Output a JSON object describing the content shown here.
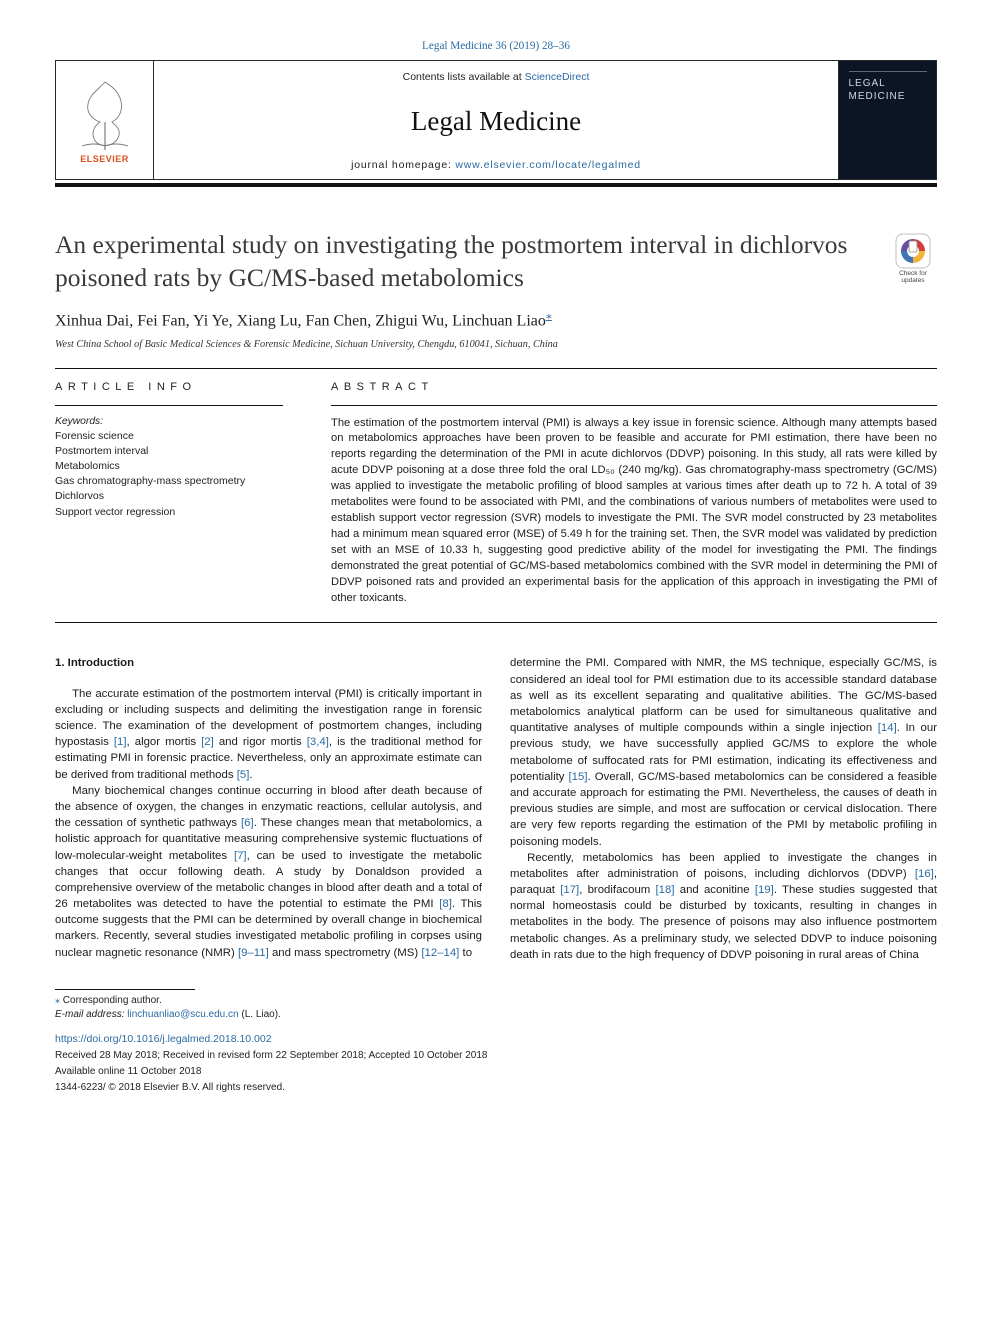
{
  "citation": {
    "text": "Legal Medicine 36 (2019) 28–36",
    "color": "#2b6ba3",
    "fontsize": 11.2
  },
  "header": {
    "contents_prefix": "Contents lists available at ",
    "contents_link_text": "ScienceDirect",
    "journal_name": "Legal Medicine",
    "journal_name_fontsize": 27,
    "homepage_prefix": "journal homepage: ",
    "homepage_link_text": "www.elsevier.com/locate/legalmed",
    "publisher_label": "ELSEVIER",
    "publisher_label_color": "#d94f1e",
    "cover_line1": "LEGAL",
    "cover_line2": "MEDICINE",
    "cover_bg": "#0b1524",
    "cover_text_color": "#cfd7e2",
    "border_color": "#2a2a2a"
  },
  "title": {
    "text": "An experimental study on investigating the postmortem interval in dichlorvos poisoned rats by GC/MS-based metabolomics",
    "fontsize": 25.5,
    "color": "#3a3a3a"
  },
  "check_updates_label": "Check for updates",
  "authors": {
    "names": "Xinhua Dai, Fei Fan, Yi Ye, Xiang Lu, Fan Chen, Zhigui Wu, Linchuan Liao",
    "corr_symbol": "⁎",
    "fontsize": 16
  },
  "affiliation": "West China School of Basic Medical Sciences & Forensic Medicine, Sichuan University, Chengdu, 610041, Sichuan, China",
  "article_info": {
    "label": "ARTICLE INFO",
    "keywords_label": "Keywords:",
    "keywords": [
      "Forensic science",
      "Postmortem interval",
      "Metabolomics",
      "Gas chromatography-mass spectrometry",
      "Dichlorvos",
      "Support vector regression"
    ]
  },
  "abstract": {
    "label": "ABSTRACT",
    "text": "The estimation of the postmortem interval (PMI) is always a key issue in forensic science. Although many attempts based on metabolomics approaches have been proven to be feasible and accurate for PMI estimation, there have been no reports regarding the determination of the PMI in acute dichlorvos (DDVP) poisoning. In this study, all rats were killed by acute DDVP poisoning at a dose three fold the oral LD₅₀ (240 mg/kg). Gas chromatography-mass spectrometry (GC/MS) was applied to investigate the metabolic profiling of blood samples at various times after death up to 72 h. A total of 39 metabolites were found to be associated with PMI, and the combinations of various numbers of metabolites were used to establish support vector regression (SVR) models to investigate the PMI. The SVR model constructed by 23 metabolites had a minimum mean squared error (MSE) of 5.49 h for the training set. Then, the SVR model was validated by prediction set with an MSE of 10.33 h, suggesting good predictive ability of the model for investigating the PMI. The findings demonstrated the great potential of GC/MS-based metabolomics combined with the SVR model in determining the PMI of DDVP poisoned rats and provided an experimental basis for the application of this approach in investigating the PMI of other toxicants.",
    "fontsize": 11.2
  },
  "body": {
    "section_heading": "1. Introduction",
    "left_paras": [
      "The accurate estimation of the postmortem interval (PMI) is critically important in excluding or including suspects and delimiting the investigation range in forensic science. The examination of the development of postmortem changes, including hypostasis [1], algor mortis [2] and rigor mortis [3,4], is the traditional method for estimating PMI in forensic practice. Nevertheless, only an approximate estimate can be derived from traditional methods [5].",
      "Many biochemical changes continue occurring in blood after death because of the absence of oxygen, the changes in enzymatic reactions, cellular autolysis, and the cessation of synthetic pathways [6]. These changes mean that metabolomics, a holistic approach for quantitative measuring comprehensive systemic fluctuations of low-molecular-weight metabolites [7], can be used to investigate the metabolic changes that occur following death. A study by Donaldson provided a comprehensive overview of the metabolic changes in blood after death and a total of 26 metabolites was detected to have the potential to estimate the PMI [8]. This outcome suggests that the PMI can be determined by overall change in biochemical markers. Recently, several studies investigated metabolic profiling in corpses using nuclear magnetic resonance (NMR) [9–11] and mass spectrometry (MS) [12–14] to"
    ],
    "right_paras": [
      "determine the PMI. Compared with NMR, the MS technique, especially GC/MS, is considered an ideal tool for PMI estimation due to its accessible standard database as well as its excellent separating and qualitative abilities. The GC/MS-based metabolomics analytical platform can be used for simultaneous qualitative and quantitative analyses of multiple compounds within a single injection [14]. In our previous study, we have successfully applied GC/MS to explore the whole metabolome of suffocated rats for PMI estimation, indicating its effectiveness and potentiality [15]. Overall, GC/MS-based metabolomics can be considered a feasible and accurate approach for estimating the PMI. Nevertheless, the causes of death in previous studies are simple, and most are suffocation or cervical dislocation. There are very few reports regarding the estimation of the PMI by metabolic profiling in poisoning models.",
      "Recently, metabolomics has been applied to investigate the changes in metabolites after administration of poisons, including dichlorvos (DDVP) [16], paraquat [17], brodifacoum [18] and aconitine [19]. These studies suggested that normal homeostasis could be disturbed by toxicants, resulting in changes in metabolites in the body. The presence of poisons may also influence postmortem metabolic changes. As a preliminary study, we selected DDVP to induce poisoning death in rats due to the high frequency of DDVP poisoning in rural areas of China"
    ],
    "ref_color": "#2b6ba3",
    "fontsize": 11.4
  },
  "footer": {
    "corr_symbol": "⁎",
    "corr_text": "Corresponding author.",
    "email_label": "E-mail address:",
    "email": "linchuanliao@scu.edu.cn",
    "email_paren": "(L. Liao).",
    "doi": "https://doi.org/10.1016/j.legalmed.2018.10.002",
    "received": "Received 28 May 2018; Received in revised form 22 September 2018; Accepted 10 October 2018",
    "available": "Available online 11 October 2018",
    "copyright": "1344-6223/ © 2018 Elsevier B.V. All rights reserved."
  },
  "colors": {
    "link": "#2b6ba3",
    "text": "#1a1a1a",
    "rule": "#111111",
    "background": "#ffffff"
  }
}
